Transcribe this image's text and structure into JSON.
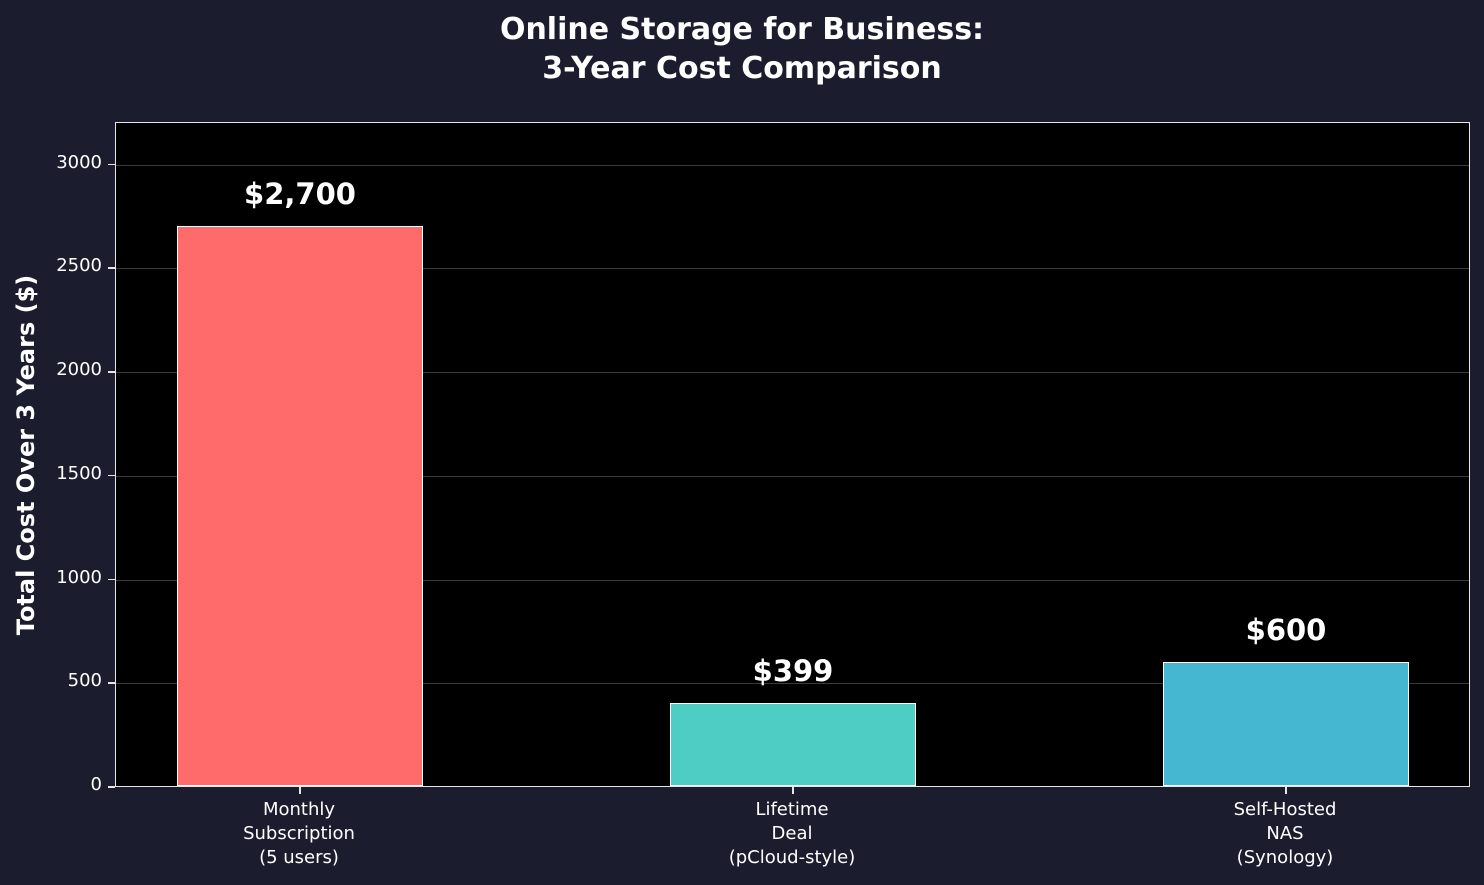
{
  "chart_data": {
    "type": "bar",
    "title": "Online Storage for Business:\n3-Year Cost Comparison",
    "title_lines": [
      "Online Storage for Business:",
      "3-Year Cost Comparison"
    ],
    "xlabel": "",
    "ylabel": "Total Cost Over 3 Years ($)",
    "categories": [
      "Monthly\nSubscription\n(5 users)",
      "Lifetime\nDeal\n(pCloud-style)",
      "Self-Hosted\nNAS\n(Synology)"
    ],
    "category_lines": [
      [
        "Monthly",
        "Subscription",
        "(5 users)"
      ],
      [
        "Lifetime",
        "Deal",
        "(pCloud-style)"
      ],
      [
        "Self-Hosted",
        "NAS",
        "(Synology)"
      ]
    ],
    "values": [
      2700,
      399,
      600
    ],
    "value_labels": [
      "$2,700",
      "$399",
      "$600"
    ],
    "colors": [
      "#ff6b6b",
      "#4ecdc4",
      "#45b7d1"
    ],
    "ylim": [
      0,
      3200
    ],
    "yticks": [
      0,
      500,
      1000,
      1500,
      2000,
      2500,
      3000
    ],
    "ytick_labels": [
      "0",
      "500",
      "1000",
      "1500",
      "2000",
      "2500",
      "3000"
    ],
    "grid": true,
    "legend": null
  }
}
